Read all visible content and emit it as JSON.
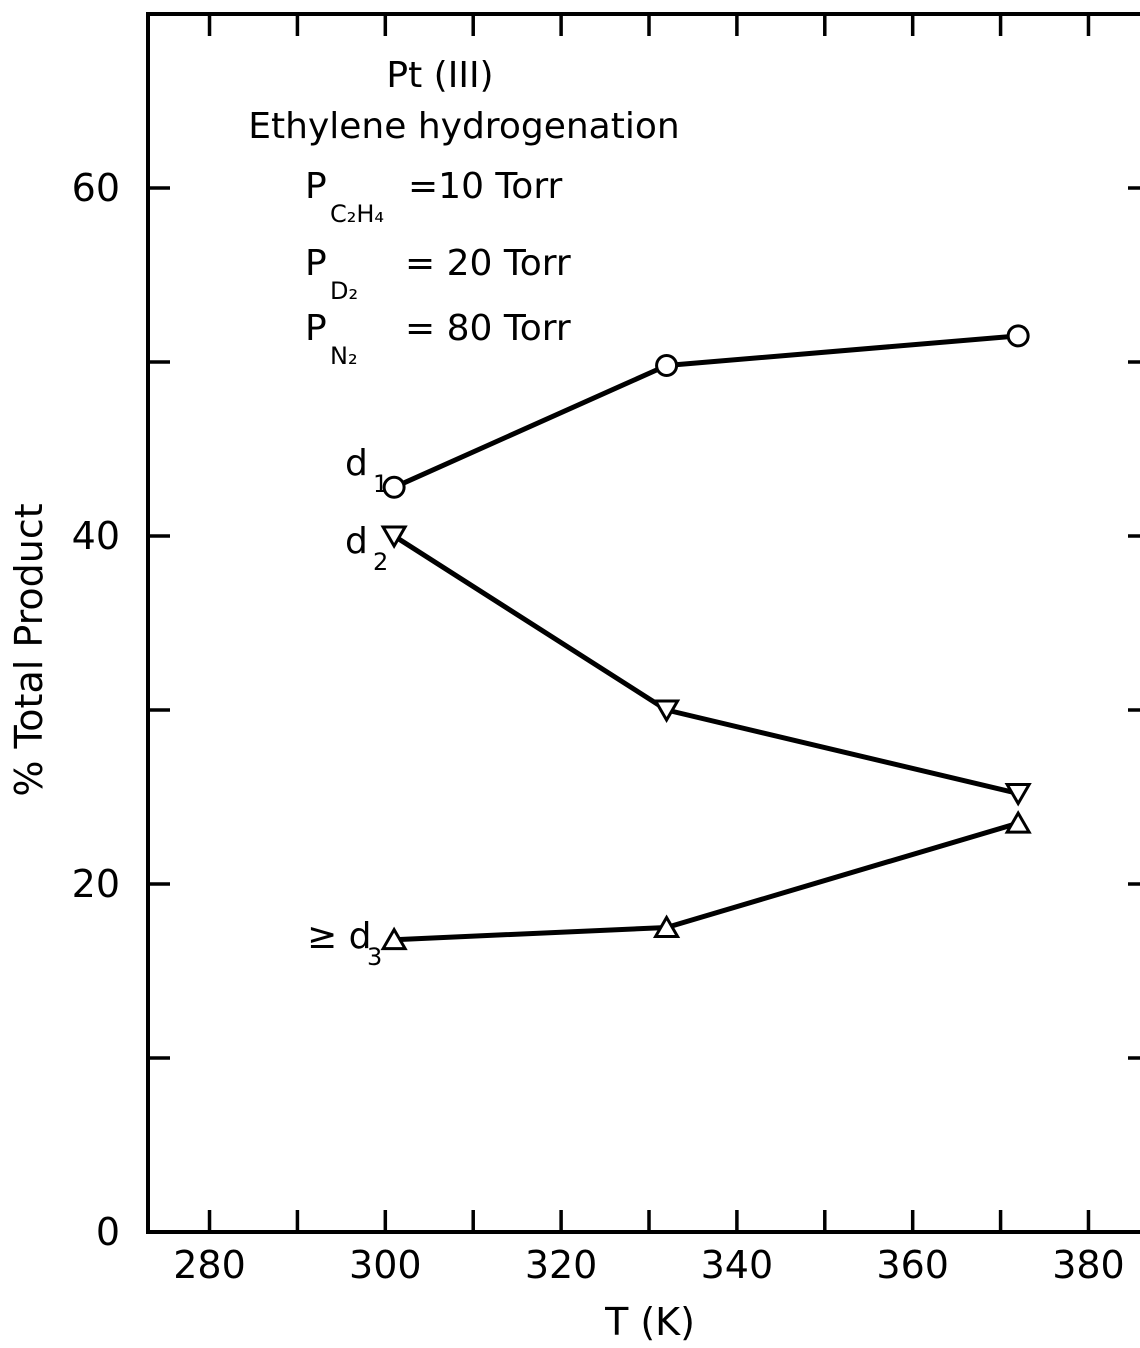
{
  "chart_data": {
    "type": "line",
    "title": "",
    "xlabel": "T (K)",
    "ylabel": "% Total Product",
    "xlim": [
      273,
      387
    ],
    "ylim": [
      0,
      70
    ],
    "xticks": [
      280,
      290,
      300,
      310,
      320,
      330,
      340,
      350,
      360,
      370,
      380
    ],
    "xtick_labels": [
      "280",
      "300",
      "320",
      "340",
      "360",
      "380"
    ],
    "yticks": [
      0,
      10,
      20,
      30,
      40,
      50,
      60
    ],
    "ytick_labels": [
      "0",
      "20",
      "40",
      "60"
    ],
    "grid": false,
    "annotation": {
      "line1": "Pt (III)",
      "line2": "Ethylene hydrogenation",
      "pressures": [
        {
          "symbol": "P",
          "sub": "C₂H₄",
          "value": "=10 Torr"
        },
        {
          "symbol": "P",
          "sub": "D₂",
          "value": "= 20 Torr"
        },
        {
          "symbol": "P",
          "sub": "N₂",
          "value": "= 80 Torr"
        }
      ]
    },
    "series": [
      {
        "name": "d1",
        "label_main": "d",
        "label_sub": "1",
        "label_prefix": "",
        "marker": "circle",
        "x": [
          301,
          332,
          372
        ],
        "y": [
          42.8,
          49.8,
          51.5
        ]
      },
      {
        "name": "d2",
        "label_main": "d",
        "label_sub": "2",
        "label_prefix": "",
        "marker": "triangle-down",
        "x": [
          301,
          332,
          372
        ],
        "y": [
          40.0,
          30.0,
          25.2
        ]
      },
      {
        "name": ">= d3",
        "label_main": "d",
        "label_sub": "3",
        "label_prefix": "≥ ",
        "marker": "triangle-up",
        "x": [
          301,
          332,
          372
        ],
        "y": [
          16.8,
          17.5,
          23.5
        ]
      }
    ]
  }
}
